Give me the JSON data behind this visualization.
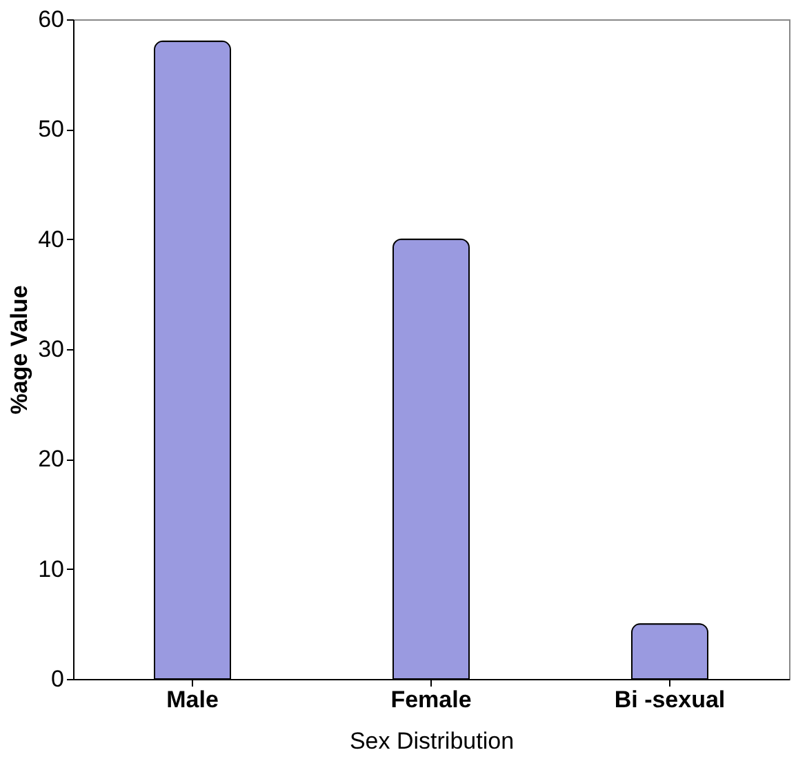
{
  "chart_data": {
    "type": "bar",
    "xlabel": "Sex Distribution",
    "ylabel": "%age Value",
    "categories": [
      "Male",
      "Female",
      "Bi -sexual"
    ],
    "values": [
      58,
      40,
      5
    ],
    "color": "#9a9ae0",
    "ylim": [
      0,
      60
    ],
    "yticks": [
      0,
      10,
      20,
      30,
      40,
      50,
      60
    ],
    "grid": false
  }
}
